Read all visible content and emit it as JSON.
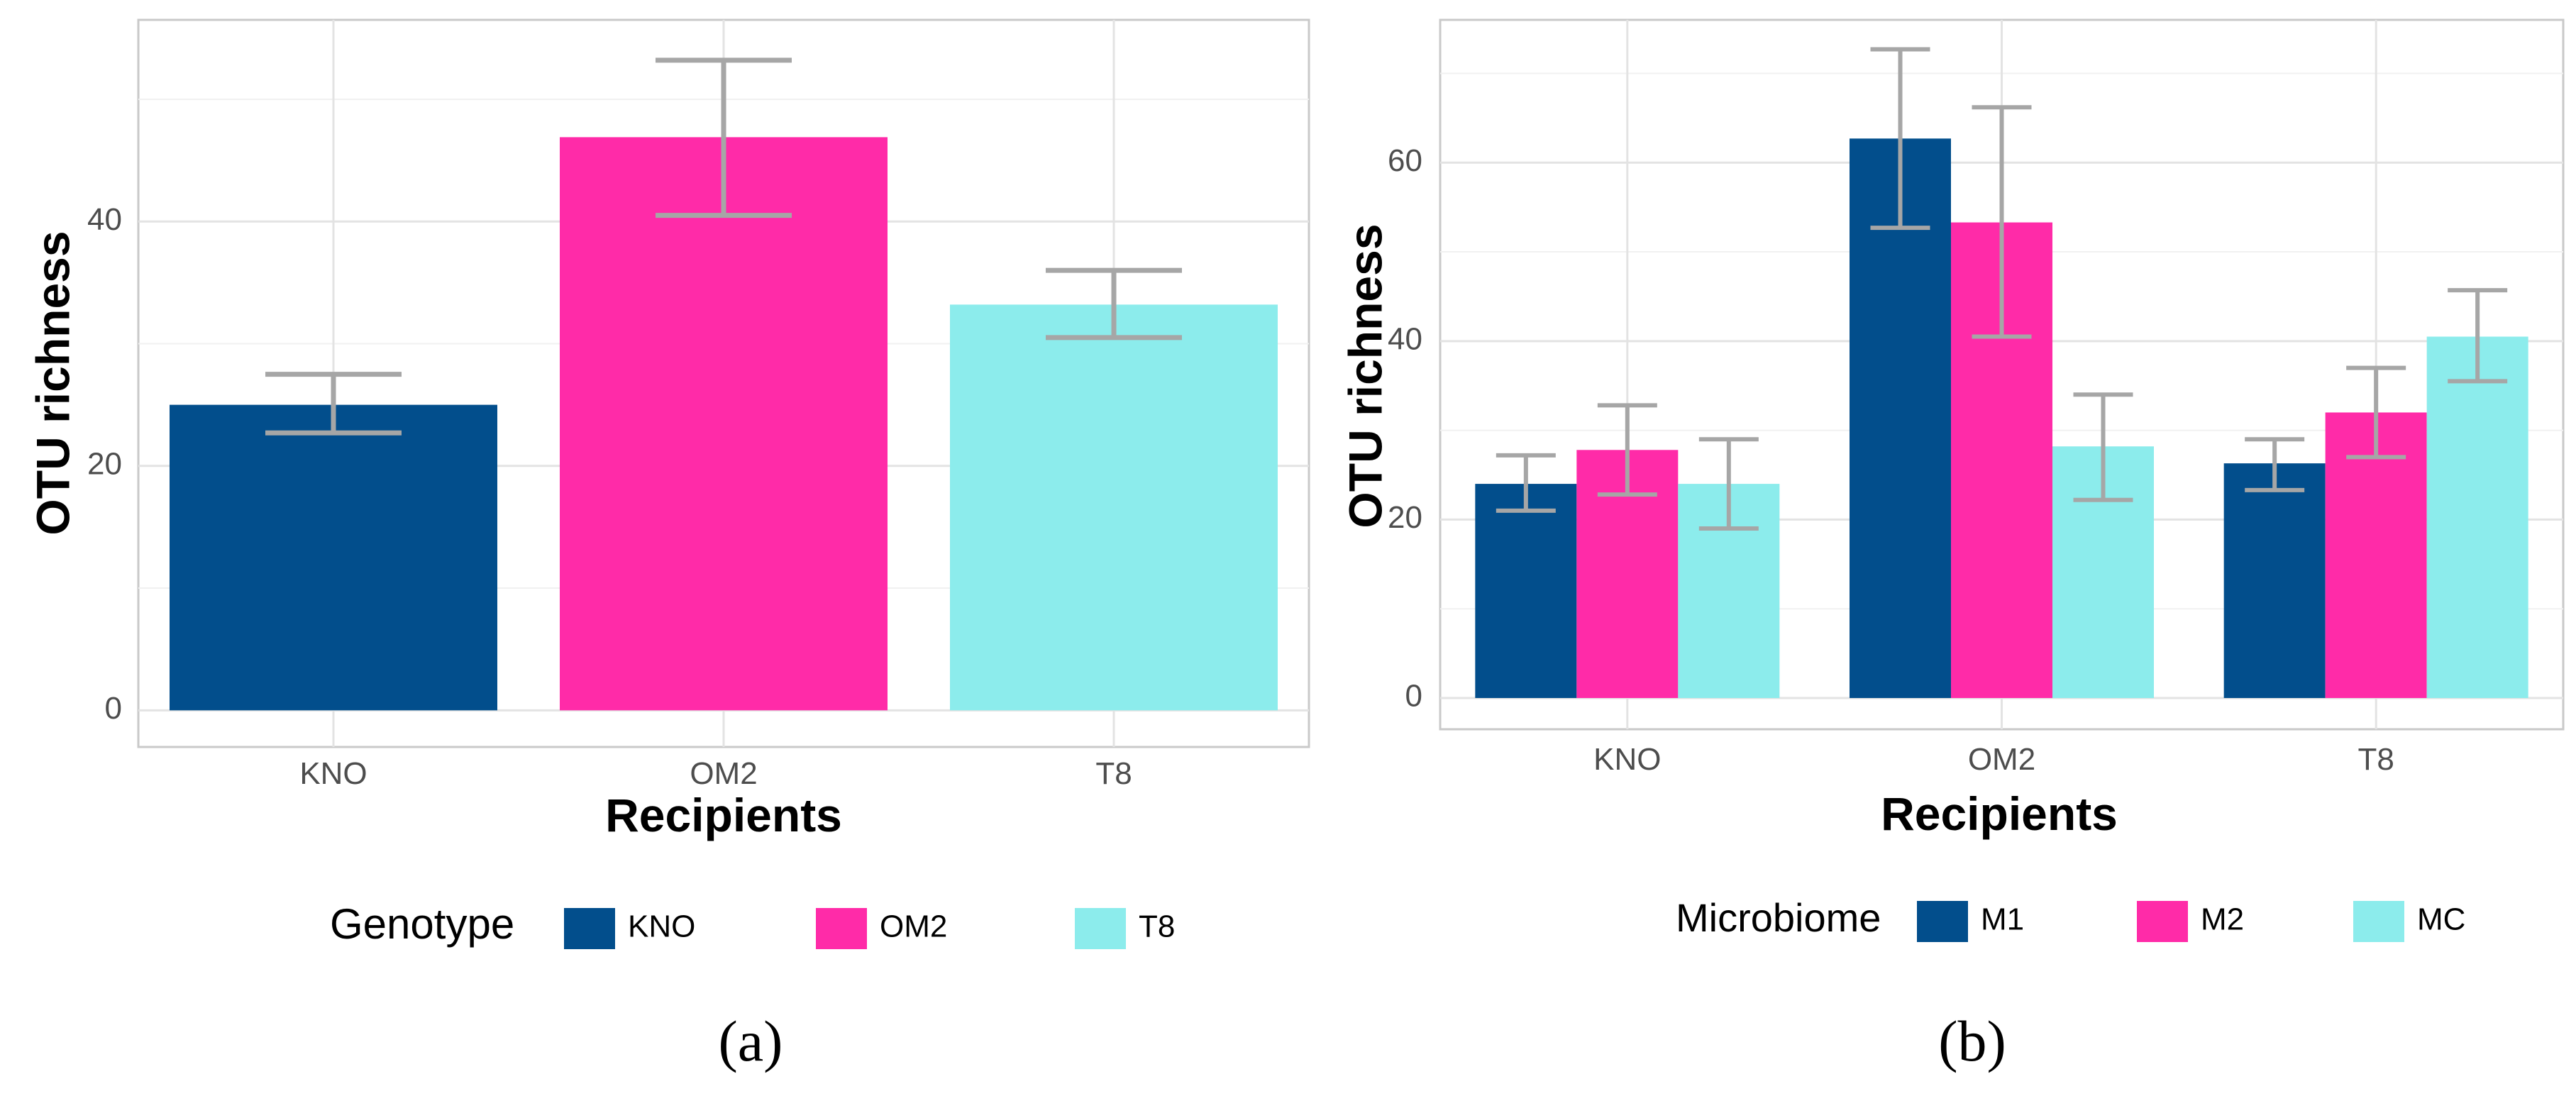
{
  "chart_data": [
    {
      "panel_label": "(a)",
      "type": "bar",
      "xlabel": "Recipients",
      "ylabel": "OTU richness",
      "ylim": [
        -3,
        56.5
      ],
      "yticks": [
        0,
        20,
        40
      ],
      "grid": true,
      "legend": {
        "title": "Genotype",
        "position": "bottom"
      },
      "categories": [
        "KNO",
        "OM2",
        "T8"
      ],
      "series": [
        {
          "name": "KNO",
          "color": "#024E8C",
          "values": [
            25.0,
            null,
            null
          ],
          "err_low": [
            22.7,
            null,
            null
          ],
          "err_high": [
            27.5,
            null,
            null
          ]
        },
        {
          "name": "OM2",
          "color": "#FF2BA8",
          "values": [
            null,
            46.9,
            null
          ],
          "err_low": [
            null,
            40.5,
            null
          ],
          "err_high": [
            null,
            53.2,
            null
          ]
        },
        {
          "name": "T8",
          "color": "#8CECEC",
          "values": [
            null,
            null,
            33.2
          ],
          "err_low": [
            null,
            null,
            30.5
          ],
          "err_high": [
            null,
            null,
            36.0
          ]
        }
      ]
    },
    {
      "panel_label": "(b)",
      "type": "bar",
      "xlabel": "Recipients",
      "ylabel": "OTU richness",
      "ylim": [
        -3.5,
        76
      ],
      "yticks": [
        0,
        20,
        40,
        60
      ],
      "grid": true,
      "legend": {
        "title": "Microbiome",
        "position": "bottom"
      },
      "categories": [
        "KNO",
        "OM2",
        "T8"
      ],
      "series": [
        {
          "name": "M1",
          "color": "#024E8C",
          "values": [
            24.0,
            62.7,
            26.3
          ],
          "err_low": [
            21.0,
            52.7,
            23.3
          ],
          "err_high": [
            27.2,
            72.7,
            29.0
          ]
        },
        {
          "name": "M2",
          "color": "#FF2BA8",
          "values": [
            27.8,
            53.3,
            32.0
          ],
          "err_low": [
            22.8,
            40.5,
            27.0
          ],
          "err_high": [
            32.8,
            66.2,
            37.0
          ]
        },
        {
          "name": "MC",
          "color": "#8CECEC",
          "values": [
            24.0,
            28.2,
            40.5
          ],
          "err_low": [
            19.0,
            22.2,
            35.5
          ],
          "err_high": [
            29.0,
            34.0,
            45.7
          ]
        }
      ]
    }
  ]
}
